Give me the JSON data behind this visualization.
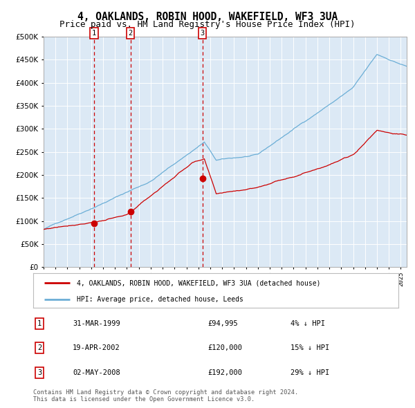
{
  "title": "4, OAKLANDS, ROBIN HOOD, WAKEFIELD, WF3 3UA",
  "subtitle": "Price paid vs. HM Land Registry's House Price Index (HPI)",
  "title_fontsize": 10.5,
  "subtitle_fontsize": 9,
  "background_color": "#ffffff",
  "plot_bg_color": "#dce9f5",
  "grid_color": "#ffffff",
  "sale_dates_num": [
    1999.25,
    2002.3,
    2008.34
  ],
  "sale_prices": [
    94995,
    120000,
    192000
  ],
  "sale_labels": [
    "1",
    "2",
    "3"
  ],
  "legend_line1": "4, OAKLANDS, ROBIN HOOD, WAKEFIELD, WF3 3UA (detached house)",
  "legend_line2": "HPI: Average price, detached house, Leeds",
  "table_rows": [
    [
      "1",
      "31-MAR-1999",
      "£94,995",
      "4% ↓ HPI"
    ],
    [
      "2",
      "19-APR-2002",
      "£120,000",
      "15% ↓ HPI"
    ],
    [
      "3",
      "02-MAY-2008",
      "£192,000",
      "29% ↓ HPI"
    ]
  ],
  "footer": "Contains HM Land Registry data © Crown copyright and database right 2024.\nThis data is licensed under the Open Government Licence v3.0.",
  "hpi_line_color": "#6baed6",
  "price_line_color": "#cc0000",
  "sale_marker_color": "#cc0000",
  "vline_color": "#cc0000",
  "ylim": [
    0,
    500000
  ],
  "yticks": [
    0,
    50000,
    100000,
    150000,
    200000,
    250000,
    300000,
    350000,
    400000,
    450000,
    500000
  ],
  "xlim_start": 1995.0,
  "xlim_end": 2025.5
}
